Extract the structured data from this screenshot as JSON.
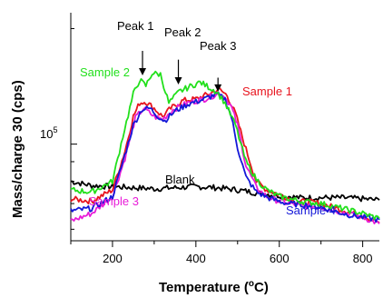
{
  "chart_data": {
    "type": "line",
    "xlabel_main": "Temperature (",
    "xlabel_sup": "o",
    "xlabel_tail": "C)",
    "ylabel": "Mass/charge 30 (cps)",
    "xlim": [
      100,
      840
    ],
    "ylim": [
      56000,
      220000
    ],
    "yscale": "log",
    "x_ticks": [
      200,
      400,
      600,
      800
    ],
    "y_tick_label": "10",
    "y_tick_exp": "5",
    "y_tick_value": 100000,
    "grid": false,
    "series": [
      {
        "name": "Sample 1",
        "color": "#e8141e",
        "points": [
          [
            100,
            72000
          ],
          [
            150,
            71000
          ],
          [
            200,
            76000
          ],
          [
            230,
            96000
          ],
          [
            250,
            118000
          ],
          [
            265,
            128000
          ],
          [
            280,
            129000
          ],
          [
            300,
            124000
          ],
          [
            320,
            118000
          ],
          [
            340,
            124000
          ],
          [
            370,
            130000
          ],
          [
            400,
            131000
          ],
          [
            430,
            135000
          ],
          [
            455,
            139000
          ],
          [
            475,
            134000
          ],
          [
            495,
            120000
          ],
          [
            520,
            97000
          ],
          [
            545,
            80000
          ],
          [
            570,
            76000
          ],
          [
            600,
            74000
          ],
          [
            640,
            71000
          ],
          [
            680,
            70500
          ],
          [
            700,
            70000
          ],
          [
            720,
            69000
          ],
          [
            760,
            67000
          ],
          [
            800,
            65000
          ],
          [
            840,
            62500
          ]
        ]
      },
      {
        "name": "Sample 2",
        "color": "#22e01c",
        "points": [
          [
            100,
            76000
          ],
          [
            150,
            75000
          ],
          [
            200,
            80000
          ],
          [
            225,
            105000
          ],
          [
            250,
            135000
          ],
          [
            265,
            147000
          ],
          [
            280,
            142000
          ],
          [
            295,
            153000
          ],
          [
            315,
            152000
          ],
          [
            335,
            128000
          ],
          [
            360,
            137000
          ],
          [
            390,
            142000
          ],
          [
            410,
            145000
          ],
          [
            430,
            141000
          ],
          [
            450,
            137000
          ],
          [
            470,
            128000
          ],
          [
            495,
            112000
          ],
          [
            520,
            90000
          ],
          [
            545,
            81000
          ],
          [
            570,
            76000
          ],
          [
            600,
            73000
          ],
          [
            650,
            71000
          ],
          [
            700,
            70000
          ],
          [
            750,
            68000
          ],
          [
            800,
            66000
          ],
          [
            840,
            64000
          ]
        ]
      },
      {
        "name": "Sample 3",
        "color": "#e81cd8",
        "points": [
          [
            100,
            63000
          ],
          [
            150,
            66000
          ],
          [
            200,
            73000
          ],
          [
            230,
            92000
          ],
          [
            255,
            117000
          ],
          [
            275,
            124000
          ],
          [
            300,
            118000
          ],
          [
            320,
            116000
          ],
          [
            345,
            123000
          ],
          [
            380,
            128000
          ],
          [
            420,
            131000
          ],
          [
            450,
            135000
          ],
          [
            470,
            133000
          ],
          [
            485,
            125000
          ],
          [
            500,
            112000
          ],
          [
            520,
            88000
          ],
          [
            545,
            77000
          ],
          [
            570,
            73000
          ],
          [
            600,
            71000
          ],
          [
            650,
            69000
          ],
          [
            700,
            68500
          ],
          [
            750,
            66500
          ],
          [
            800,
            64500
          ],
          [
            840,
            62000
          ]
        ]
      },
      {
        "name": "Sample 4",
        "color": "#1418d8",
        "points": [
          [
            100,
            67000
          ],
          [
            150,
            68000
          ],
          [
            200,
            73000
          ],
          [
            225,
            90000
          ],
          [
            250,
            112000
          ],
          [
            270,
            123000
          ],
          [
            290,
            124000
          ],
          [
            310,
            118000
          ],
          [
            325,
            115000
          ],
          [
            350,
            122000
          ],
          [
            380,
            127000
          ],
          [
            420,
            131000
          ],
          [
            450,
            135000
          ],
          [
            470,
            131000
          ],
          [
            485,
            118000
          ],
          [
            500,
            98000
          ],
          [
            520,
            82000
          ],
          [
            545,
            75000
          ],
          [
            580,
            72000
          ],
          [
            620,
            70000
          ],
          [
            660,
            69500
          ],
          [
            700,
            68500
          ],
          [
            740,
            66500
          ],
          [
            780,
            65000
          ],
          [
            820,
            64000
          ],
          [
            840,
            63500
          ]
        ]
      },
      {
        "name": "Blank",
        "color": "#000000",
        "points": [
          [
            100,
            80000
          ],
          [
            150,
            78000
          ],
          [
            200,
            77500
          ],
          [
            250,
            77000
          ],
          [
            300,
            76500
          ],
          [
            350,
            77000
          ],
          [
            400,
            77500
          ],
          [
            450,
            77000
          ],
          [
            500,
            76000
          ],
          [
            550,
            74500
          ],
          [
            600,
            73500
          ],
          [
            650,
            72500
          ],
          [
            700,
            72500
          ],
          [
            750,
            72500
          ],
          [
            800,
            72000
          ],
          [
            840,
            71500
          ]
        ]
      }
    ],
    "annotations": [
      {
        "label": "Peak 1",
        "arrow_x": 272,
        "arrow_y_top": 175000,
        "arrow_y_bottom": 151000
      },
      {
        "label": "Peak 2",
        "arrow_x": 358,
        "arrow_y_top": 166000,
        "arrow_y_bottom": 143000
      },
      {
        "label": "Peak 3",
        "arrow_x": 453,
        "arrow_y_top": 149000,
        "arrow_y_bottom": 137000
      }
    ]
  }
}
